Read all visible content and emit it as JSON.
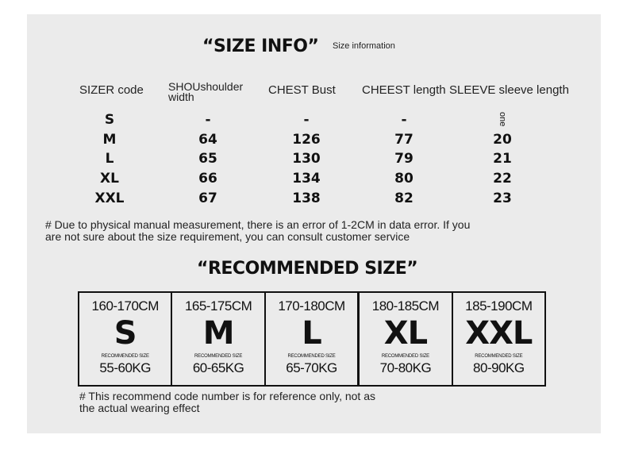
{
  "size_info": {
    "title": "“SIZE INFO”",
    "subtitle": "Size information",
    "headers": [
      "SIZER code",
      "SHOUshoulder width",
      "CHEST Bust",
      "CHEEST length",
      "SLEEVE sleeve length"
    ],
    "rows": [
      [
        "S",
        "-",
        "-",
        "-",
        "one"
      ],
      [
        "M",
        "64",
        "126",
        "77",
        "20"
      ],
      [
        "L",
        "65",
        "130",
        "79",
        "21"
      ],
      [
        "XL",
        "66",
        "134",
        "80",
        "22"
      ],
      [
        "XXL",
        "67",
        "138",
        "82",
        "23"
      ]
    ],
    "note_line1": "# Due to physical manual measurement, there is an error of 1-2CM in data error. If you",
    "note_line2": "are not sure about the size requirement, you can consult customer service"
  },
  "recommended": {
    "title": "“RECOMMENDED SIZE”",
    "boxes": [
      {
        "height": "160-170CM",
        "size": "S",
        "label": "RECOMMENDED SIZE",
        "weight": "55-60KG"
      },
      {
        "height": "165-175CM",
        "size": "M",
        "label": "RECOMMENDED SIZE",
        "weight": "60-65KG"
      },
      {
        "height": "170-180CM",
        "size": "L",
        "label": "RECOMMENDED SIZE",
        "weight": "65-70KG"
      },
      {
        "height": "180-185CM",
        "size": "XL",
        "label": "RECOMMENDED SIZE",
        "weight": "70-80KG"
      },
      {
        "height": "185-190CM",
        "size": "XXL",
        "label": "RECOMMENDED SIZE",
        "weight": "80-90KG"
      }
    ],
    "note_line1": "# This recommend code number is for reference only, not as",
    "note_line2": "the actual wearing effect"
  }
}
